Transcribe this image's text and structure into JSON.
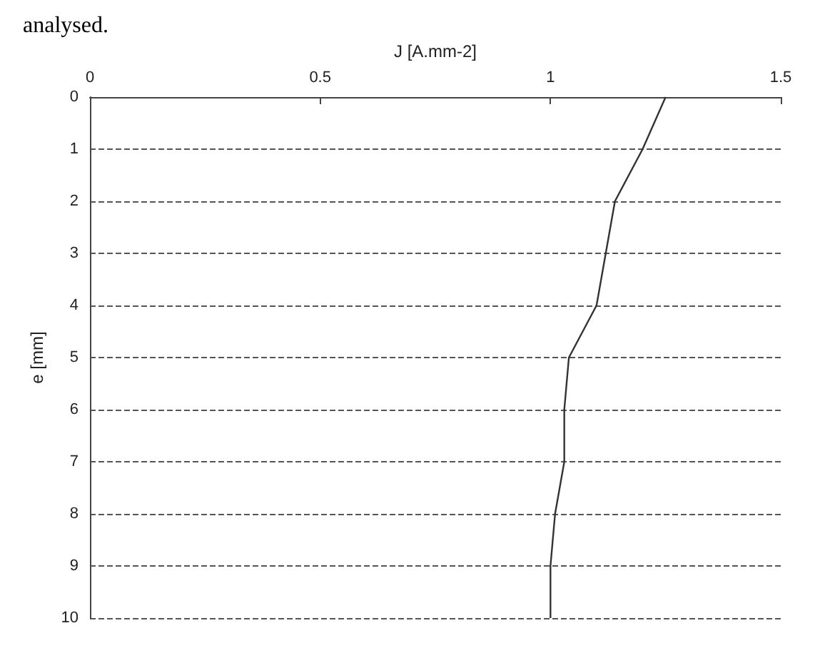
{
  "chart_data": {
    "type": "line",
    "xlabel": "J [A.mm-2]",
    "ylabel": "e [mm]",
    "annotations": [
      "analysed."
    ],
    "x": [
      1.25,
      1.2,
      1.14,
      1.12,
      1.1,
      1.04,
      1.03,
      1.03,
      1.01,
      1.0,
      1.0
    ],
    "series": [
      {
        "color": "#333333",
        "values": [
          0,
          1,
          2,
          3,
          4,
          5,
          6,
          7,
          8,
          9,
          10
        ]
      }
    ],
    "xlim": [
      0,
      1.5
    ],
    "xticks": [
      0,
      0.5,
      1,
      1.5
    ],
    "ylim": [
      10,
      0
    ],
    "yticks": [
      0,
      1,
      2,
      3,
      4,
      5,
      6,
      7,
      8,
      9,
      10
    ],
    "grid": "y",
    "marker": "none",
    "line_style": "solid"
  }
}
